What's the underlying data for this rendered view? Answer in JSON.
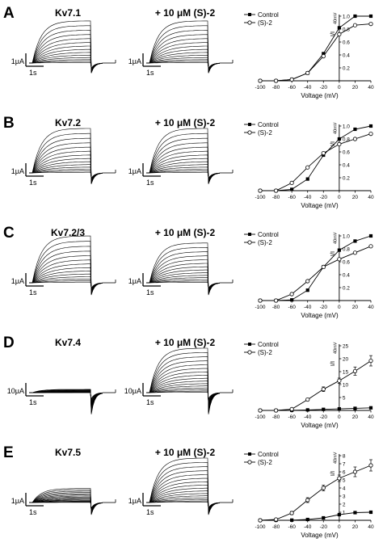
{
  "panels": [
    {
      "letter": "A",
      "trace_label": "Kv7.1",
      "drug_label": "+ 10 μM (S)-2",
      "scale_current": "1μA",
      "scale_time": "1s",
      "ylabel_main": "I/I",
      "ylabel_sub": "40mV",
      "xlabel": "Voltage (mV)",
      "legend": [
        "Control",
        "(S)-2"
      ]
    },
    {
      "letter": "B",
      "trace_label": "Kv7.2",
      "drug_label": "+ 10 μM (S)-2",
      "scale_current": "1μA",
      "scale_time": "1s",
      "ylabel_main": "I/I",
      "ylabel_sub": "40mV",
      "xlabel": "Voltage (mV)",
      "legend": [
        "Control",
        "(S)-2"
      ]
    },
    {
      "letter": "C",
      "trace_label": "Kv7.2/3",
      "drug_label": "+ 10 μM (S)-2",
      "scale_current": "1μA",
      "scale_time": "1s",
      "ylabel_main": "I/I",
      "ylabel_sub": "40mV",
      "xlabel": "Voltage (mV)",
      "legend": [
        "Control",
        "(S)-2"
      ]
    },
    {
      "letter": "D",
      "trace_label": "Kv7.4",
      "drug_label": "+ 10 μM (S)-2",
      "scale_current": "10μA",
      "scale_time": "1s",
      "ylabel_main": "I/I",
      "ylabel_sub": "40mV",
      "xlabel": "Voltage (mV)",
      "legend": [
        "Control",
        "(S)-2"
      ]
    },
    {
      "letter": "E",
      "trace_label": "Kv7.5",
      "drug_label": "+ 10 μM (S)-2",
      "scale_current": "1μA",
      "scale_time": "1s",
      "ylabel_main": "I/I",
      "ylabel_sub": "40mV",
      "xlabel": "Voltage (mV)",
      "legend": [
        "Control",
        "(S)-2"
      ]
    }
  ],
  "chart_data": [
    {
      "type": "line",
      "panel": "A",
      "x": [
        -100,
        -80,
        -60,
        -40,
        -20,
        0,
        20,
        40
      ],
      "xticks": [
        -100,
        -80,
        -60,
        -40,
        -20,
        0,
        20,
        40
      ],
      "xlim": [
        -100,
        40
      ],
      "ylim": [
        0,
        1.0
      ],
      "yticks": [
        "0.2",
        "0.4",
        "0.6",
        "0.8",
        "1.0"
      ],
      "ytick_values": [
        0.2,
        0.4,
        0.6,
        0.8,
        1.0
      ],
      "xlabel": "Voltage (mV)",
      "ylabel": "I/I40mV",
      "legend_position": "top-left",
      "series": [
        {
          "name": "Control",
          "marker": "filled-square",
          "values": [
            0,
            0,
            0.02,
            0.12,
            0.42,
            0.82,
            1.0,
            1.0
          ]
        },
        {
          "name": "(S)-2",
          "marker": "open-circle",
          "values": [
            0,
            0,
            0.02,
            0.12,
            0.38,
            0.72,
            0.86,
            0.88
          ]
        }
      ]
    },
    {
      "type": "line",
      "panel": "B",
      "x": [
        -100,
        -80,
        -60,
        -40,
        -20,
        0,
        20,
        40
      ],
      "xticks": [
        -100,
        -80,
        -60,
        -40,
        -20,
        0,
        20,
        40
      ],
      "xlim": [
        -100,
        40
      ],
      "ylim": [
        0,
        1.0
      ],
      "yticks": [
        "0.2",
        "0.4",
        "0.6",
        "0.8",
        "1.0"
      ],
      "ytick_values": [
        0.2,
        0.4,
        0.6,
        0.8,
        1.0
      ],
      "xlabel": "Voltage (mV)",
      "ylabel": "I/I40mV",
      "legend_position": "top-left",
      "series": [
        {
          "name": "Control",
          "marker": "filled-square",
          "values": [
            0,
            0,
            0.02,
            0.18,
            0.55,
            0.8,
            0.95,
            1.0
          ]
        },
        {
          "name": "(S)-2",
          "marker": "open-circle",
          "values": [
            0,
            0,
            0.12,
            0.36,
            0.58,
            0.72,
            0.8,
            0.88
          ]
        }
      ]
    },
    {
      "type": "line",
      "panel": "C",
      "x": [
        -100,
        -80,
        -60,
        -40,
        -20,
        0,
        20,
        40
      ],
      "xticks": [
        -100,
        -80,
        -60,
        -40,
        -20,
        0,
        20,
        40
      ],
      "xlim": [
        -100,
        40
      ],
      "ylim": [
        0,
        1.0
      ],
      "yticks": [
        "0.2",
        "0.4",
        "0.6",
        "0.8",
        "1.0"
      ],
      "ytick_values": [
        0.2,
        0.4,
        0.6,
        0.8,
        1.0
      ],
      "xlabel": "Voltage (mV)",
      "ylabel": "I/I40mV",
      "legend_position": "top-left",
      "series": [
        {
          "name": "Control",
          "marker": "filled-square",
          "values": [
            0,
            0,
            0.01,
            0.16,
            0.52,
            0.78,
            0.92,
            1.0
          ]
        },
        {
          "name": "(S)-2",
          "marker": "open-circle",
          "values": [
            0,
            0,
            0.1,
            0.3,
            0.52,
            0.64,
            0.74,
            0.84
          ]
        }
      ]
    },
    {
      "type": "line",
      "panel": "D",
      "x": [
        -100,
        -80,
        -60,
        -40,
        -20,
        0,
        20,
        40
      ],
      "xticks": [
        -100,
        -80,
        -60,
        -40,
        -20,
        0,
        20,
        40
      ],
      "xlim": [
        -100,
        40
      ],
      "ylim": [
        0,
        25
      ],
      "yticks": [
        "5",
        "10",
        "15",
        "20",
        "25"
      ],
      "ytick_values": [
        5,
        10,
        15,
        20,
        25
      ],
      "xlabel": "Voltage (mV)",
      "ylabel": "I/I40mV",
      "legend_position": "top-left",
      "series": [
        {
          "name": "Control",
          "marker": "filled-square",
          "values": [
            0,
            0,
            0.05,
            0.2,
            0.4,
            0.6,
            0.8,
            1.0
          ]
        },
        {
          "name": "(S)-2",
          "marker": "open-circle",
          "values": [
            0,
            0,
            0.5,
            4.2,
            8.2,
            11.5,
            15.2,
            19.2
          ],
          "error": [
            0,
            0,
            0.2,
            0.5,
            0.9,
            1.0,
            1.6,
            2.0
          ]
        }
      ]
    },
    {
      "type": "line",
      "panel": "E",
      "x": [
        -100,
        -80,
        -60,
        -40,
        -20,
        0,
        20,
        40
      ],
      "xticks": [
        -100,
        -80,
        -60,
        -40,
        -20,
        0,
        20,
        40
      ],
      "xlim": [
        -100,
        40
      ],
      "ylim": [
        0,
        8
      ],
      "yticks": [
        "1",
        "2",
        "3",
        "4",
        "5",
        "6",
        "7",
        "8"
      ],
      "ytick_values": [
        1,
        2,
        3,
        4,
        5,
        6,
        7,
        8
      ],
      "xlabel": "Voltage (mV)",
      "ylabel": "I/I40mV",
      "legend_position": "top-left",
      "series": [
        {
          "name": "Control",
          "marker": "filled-square",
          "values": [
            0,
            0,
            0.02,
            0.1,
            0.3,
            0.7,
            0.95,
            1.0
          ]
        },
        {
          "name": "(S)-2",
          "marker": "open-circle",
          "values": [
            0,
            0.1,
            0.9,
            2.5,
            4.0,
            5.2,
            6.0,
            6.8
          ],
          "error": [
            0,
            0.05,
            0.2,
            0.3,
            0.35,
            0.4,
            0.6,
            0.7
          ]
        }
      ]
    }
  ],
  "traces": [
    {
      "panel": "A",
      "control_plateau_fraction": 0.9,
      "drug_plateau_fraction": 0.9,
      "tail_fraction": 0.25,
      "curve_count": 14
    },
    {
      "panel": "B",
      "control_plateau_fraction": 0.95,
      "drug_plateau_fraction": 0.95,
      "tail_fraction": 0.3,
      "curve_count": 14
    },
    {
      "panel": "C",
      "control_plateau_fraction": 1.0,
      "drug_plateau_fraction": 0.85,
      "tail_fraction": 0.35,
      "curve_count": 14
    },
    {
      "panel": "D",
      "control_plateau_fraction": 0.07,
      "drug_plateau_fraction": 0.95,
      "tail_fraction": 0.8,
      "curve_count": 16
    },
    {
      "panel": "E",
      "control_plateau_fraction": 0.3,
      "drug_plateau_fraction": 0.95,
      "tail_fraction": 0.35,
      "curve_count": 16
    }
  ],
  "colors": {
    "ink": "#000000",
    "background": "#ffffff"
  }
}
